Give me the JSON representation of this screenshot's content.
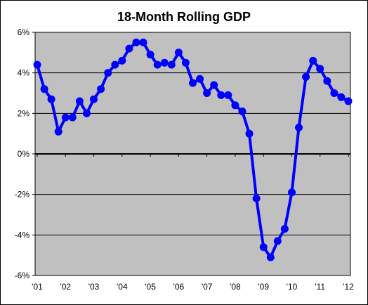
{
  "chart_data": {
    "type": "line",
    "title": "18-Month Rolling GDP",
    "xlabel": "",
    "ylabel": "",
    "ylim": [
      -6,
      6
    ],
    "y_ticks": [
      "6%",
      "4%",
      "2%",
      "0%",
      "-2%",
      "-4%",
      "-6%"
    ],
    "x_tick_labels": [
      "'01",
      "'02",
      "'03",
      "'04",
      "'05",
      "'06",
      "'07",
      "'08",
      "'09",
      "'10",
      "'11",
      "'12"
    ],
    "grid": "horizontal",
    "legend": "none",
    "colors": {
      "plot_background": "#c0c0c0",
      "series": "#0000ff",
      "grid": "#000000"
    },
    "series": [
      {
        "values": [
          4.4,
          3.2,
          2.7,
          1.1,
          1.8,
          1.8,
          2.6,
          2.0,
          2.7,
          3.2,
          4.0,
          4.4,
          4.6,
          5.2,
          5.5,
          5.5,
          4.9,
          4.4,
          4.5,
          4.4,
          5.0,
          4.5,
          3.5,
          3.7,
          3.0,
          3.4,
          2.9,
          2.9,
          2.4,
          2.1,
          1.0,
          -2.2,
          -4.6,
          -5.1,
          -4.3,
          -3.7,
          -1.9,
          1.3,
          3.8,
          4.6,
          4.2,
          3.6,
          3.0,
          2.8,
          2.6
        ]
      }
    ]
  }
}
